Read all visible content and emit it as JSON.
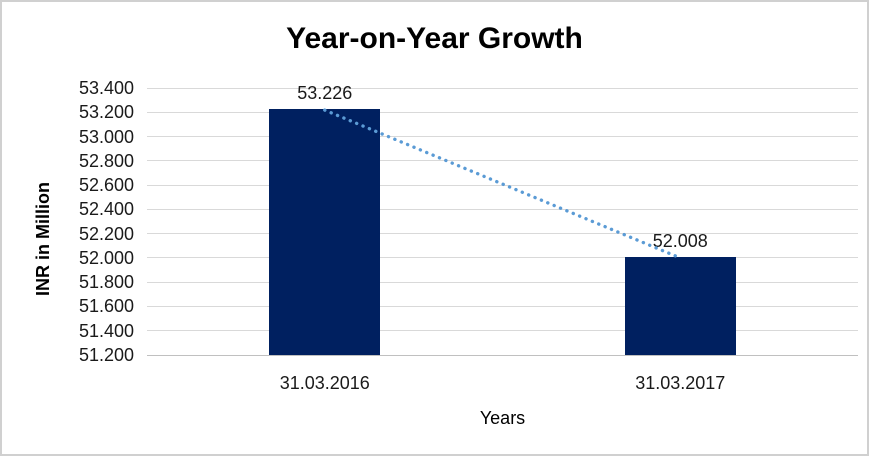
{
  "chart_data": {
    "type": "bar",
    "title": "Year-on-Year Growth",
    "xlabel": "Years",
    "ylabel": "INR in Million",
    "categories": [
      "31.03.2016",
      "31.03.2017"
    ],
    "values": [
      53.226,
      52.008
    ],
    "data_labels": [
      "53.226",
      "52.008"
    ],
    "ylim": [
      51.2,
      53.4
    ],
    "ytick_step": 0.2,
    "ytick_labels": [
      "53.400",
      "53.200",
      "53.000",
      "52.800",
      "52.600",
      "52.400",
      "52.200",
      "52.000",
      "51.800",
      "51.600",
      "51.400",
      "51.200"
    ],
    "grid": true,
    "legend": "none",
    "trendline": {
      "style": "dotted",
      "from_value": 53.226,
      "to_value": 52.008
    },
    "colors": {
      "bar": "#002060",
      "trendline": "#5b9bd5",
      "gridline": "#d9d9d9",
      "axis_line": "#c0c0c0",
      "frame_border": "#d0d0d0",
      "text": "#1a1a1a",
      "title_text": "#000000",
      "background": "#ffffff"
    }
  }
}
